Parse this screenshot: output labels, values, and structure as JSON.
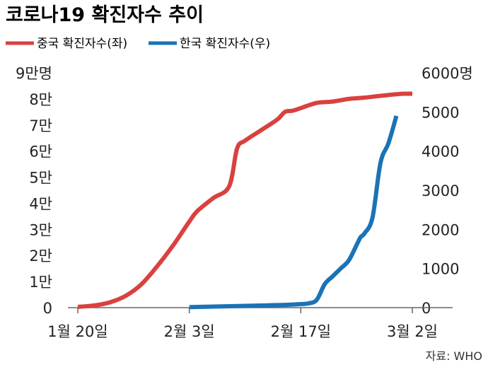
{
  "chart_data": {
    "type": "line",
    "title": "코로나19 확진자수 추이",
    "source": "자료: WHO",
    "x_ticks": [
      {
        "label": "1월 20일",
        "day": 0
      },
      {
        "label": "2월 3일",
        "day": 14
      },
      {
        "label": "2월 17일",
        "day": 28
      },
      {
        "label": "3월 2일",
        "day": 42
      }
    ],
    "y_left": {
      "range": [
        0,
        90000
      ],
      "ticks": [
        {
          "label": "0",
          "value": 0
        },
        {
          "label": "1만",
          "value": 10000
        },
        {
          "label": "2만",
          "value": 20000
        },
        {
          "label": "3만",
          "value": 30000
        },
        {
          "label": "4만",
          "value": 40000
        },
        {
          "label": "5만",
          "value": 50000
        },
        {
          "label": "6만",
          "value": 60000
        },
        {
          "label": "7만",
          "value": 70000
        },
        {
          "label": "8만",
          "value": 80000
        },
        {
          "label": "9만명",
          "value": 90000
        }
      ]
    },
    "y_right": {
      "range": [
        0,
        6000
      ],
      "ticks": [
        {
          "label": "0",
          "value": 0
        },
        {
          "label": "1000",
          "value": 1000
        },
        {
          "label": "2000",
          "value": 2000
        },
        {
          "label": "3000",
          "value": 3000
        },
        {
          "label": "4000",
          "value": 4000
        },
        {
          "label": "5000",
          "value": 5000
        },
        {
          "label": "6000명",
          "value": 6000
        }
      ]
    },
    "series": [
      {
        "name": "중국 확진자수(좌)",
        "axis": "left",
        "color": "#d9413f",
        "points": [
          [
            0,
            300
          ],
          [
            2,
            800
          ],
          [
            4,
            2000
          ],
          [
            6,
            4500
          ],
          [
            8,
            9000
          ],
          [
            10,
            16000
          ],
          [
            12,
            24000
          ],
          [
            14,
            33000
          ],
          [
            15,
            37000
          ],
          [
            17,
            42000
          ],
          [
            19,
            46500
          ],
          [
            20,
            61000
          ],
          [
            21,
            64000
          ],
          [
            23,
            68000
          ],
          [
            25,
            72000
          ],
          [
            26,
            75000
          ],
          [
            27,
            75500
          ],
          [
            28,
            76500
          ],
          [
            30,
            78500
          ],
          [
            32,
            79000
          ],
          [
            34,
            80000
          ],
          [
            36,
            80500
          ],
          [
            38,
            81200
          ],
          [
            40,
            81800
          ],
          [
            41,
            82000
          ],
          [
            42,
            82000
          ]
        ]
      },
      {
        "name": "한국 확진자수(우)",
        "axis": "right",
        "color": "#1a73b5",
        "points": [
          [
            14,
            15
          ],
          [
            18,
            30
          ],
          [
            22,
            50
          ],
          [
            26,
            70
          ],
          [
            28,
            90
          ],
          [
            29,
            110
          ],
          [
            30,
            200
          ],
          [
            31,
            600
          ],
          [
            32,
            800
          ],
          [
            33,
            1000
          ],
          [
            34,
            1200
          ],
          [
            35,
            1600
          ],
          [
            35.5,
            1800
          ],
          [
            36,
            1900
          ],
          [
            37,
            2300
          ],
          [
            38,
            3700
          ],
          [
            39,
            4200
          ],
          [
            40,
            4900
          ]
        ]
      }
    ]
  }
}
